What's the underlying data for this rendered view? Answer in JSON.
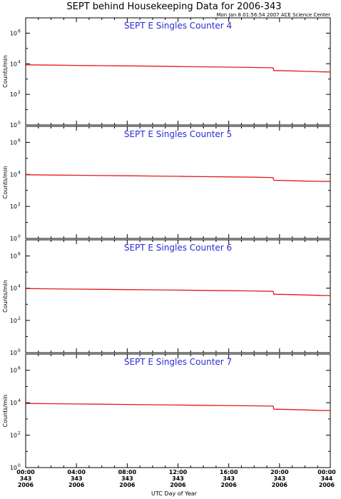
{
  "title": "SEPT behind Housekeeping Data for 2006-343",
  "timestamp": "Mon Jan  8 01:56:54 2007 ACE Science Center",
  "x_axis_label": "UTC Day of Year",
  "y_axis_label": "Counts/min",
  "x_ticks": [
    {
      "time": "00:00",
      "doy": "343",
      "year": "2006"
    },
    {
      "time": "04:00",
      "doy": "343",
      "year": "2006"
    },
    {
      "time": "08:00",
      "doy": "343",
      "year": "2006"
    },
    {
      "time": "12:00",
      "doy": "343",
      "year": "2006"
    },
    {
      "time": "16:00",
      "doy": "343",
      "year": "2006"
    },
    {
      "time": "20:00",
      "doy": "343",
      "year": "2006"
    },
    {
      "time": "00:00",
      "doy": "344",
      "year": "2006"
    }
  ],
  "y_ticks": [
    {
      "base": "10",
      "exp": "0",
      "value": 1
    },
    {
      "base": "10",
      "exp": "2",
      "value": 100
    },
    {
      "base": "10",
      "exp": "4",
      "value": 10000
    },
    {
      "base": "10",
      "exp": "6",
      "value": 1000000
    }
  ],
  "colors": {
    "line": "#e31a1c",
    "panel_title": "#2a2ad8",
    "axis": "#000000"
  },
  "chart_data": [
    {
      "type": "line",
      "title": "SEPT E Singles Counter 4",
      "ylabel": "Counts/min",
      "xlabel": "UTC Day of Year",
      "y_scale": "log",
      "ylim": [
        1,
        10000000
      ],
      "xlim": [
        0,
        24
      ],
      "series": [
        {
          "x": [
            0,
            2,
            4,
            6,
            8,
            10,
            12,
            14,
            16,
            18,
            19.5,
            19.55,
            21,
            22,
            23,
            24
          ],
          "y": [
            8500,
            8100,
            7800,
            7500,
            7200,
            6900,
            6600,
            6300,
            6000,
            5700,
            5400,
            3600,
            3400,
            3200,
            3000,
            2900
          ]
        }
      ]
    },
    {
      "type": "line",
      "title": "SEPT E Singles Counter 5",
      "ylabel": "Counts/min",
      "xlabel": "UTC Day of Year",
      "y_scale": "log",
      "ylim": [
        1,
        10000000
      ],
      "xlim": [
        0,
        24
      ],
      "series": [
        {
          "x": [
            0,
            2,
            4,
            6,
            8,
            10,
            12,
            14,
            16,
            18,
            19.5,
            19.55,
            21,
            22,
            23,
            24
          ],
          "y": [
            9500,
            9100,
            8800,
            8500,
            8200,
            7900,
            7600,
            7300,
            7000,
            6700,
            6300,
            4300,
            4000,
            3800,
            3700,
            3600
          ]
        }
      ]
    },
    {
      "type": "line",
      "title": "SEPT E Singles Counter 6",
      "ylabel": "Counts/min",
      "xlabel": "UTC Day of Year",
      "y_scale": "log",
      "ylim": [
        1,
        10000000
      ],
      "xlim": [
        0,
        24
      ],
      "series": [
        {
          "x": [
            0,
            2,
            4,
            6,
            8,
            10,
            12,
            14,
            16,
            18,
            19.5,
            19.55,
            21,
            22,
            23,
            24
          ],
          "y": [
            9500,
            9100,
            8800,
            8500,
            8200,
            7900,
            7600,
            7300,
            7000,
            6700,
            6400,
            4200,
            4000,
            3800,
            3600,
            3500
          ]
        }
      ]
    },
    {
      "type": "line",
      "title": "SEPT E Singles Counter 7",
      "ylabel": "Counts/min",
      "xlabel": "UTC Day of Year",
      "y_scale": "log",
      "ylim": [
        1,
        10000000
      ],
      "xlim": [
        0,
        24
      ],
      "series": [
        {
          "x": [
            0,
            2,
            4,
            6,
            8,
            10,
            12,
            14,
            16,
            18,
            19.5,
            19.55,
            21,
            22,
            23,
            24
          ],
          "y": [
            9000,
            8700,
            8400,
            8100,
            7800,
            7500,
            7200,
            6900,
            6700,
            6400,
            6200,
            4000,
            3800,
            3600,
            3400,
            3300
          ]
        }
      ]
    }
  ]
}
